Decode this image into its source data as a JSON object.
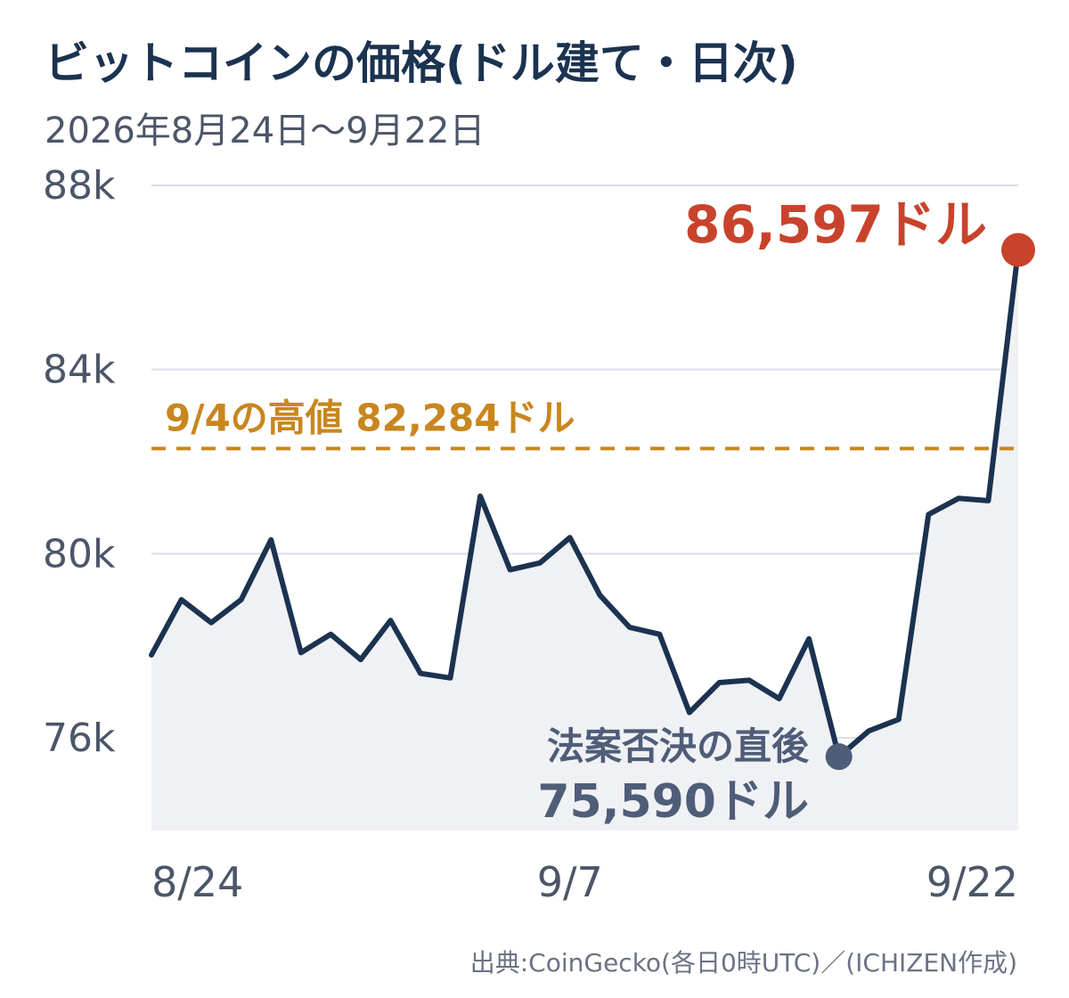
{
  "colors": {
    "title": "#1b3350",
    "line": "#1b3350",
    "area": "#f0f1f4",
    "grid": "#dcdfe8",
    "high": "#c8861f",
    "last": "#c9432c",
    "low": "#4f5d78",
    "axis_text": "#4c5668"
  },
  "chart_data": {
    "type": "line",
    "title": "ビットコインの価格(ドル建て・日次)",
    "subtitle": "2026年8月24日〜9月22日",
    "x": [
      "8/24",
      "8/25",
      "8/26",
      "8/27",
      "8/28",
      "8/29",
      "8/30",
      "8/31",
      "9/1",
      "9/2",
      "9/3",
      "9/4",
      "9/5",
      "9/6",
      "9/7",
      "9/8",
      "9/9",
      "9/10",
      "9/11",
      "9/12",
      "9/13",
      "9/14",
      "9/15",
      "9/16",
      "9/17",
      "9/18",
      "9/19",
      "9/20",
      "9/21",
      "9/22"
    ],
    "series": [
      {
        "values": [
          77800,
          79000,
          78500,
          79000,
          80300,
          77850,
          78250,
          77700,
          78550,
          77400,
          77300,
          81250,
          79650,
          79800,
          80350,
          79100,
          78400,
          78250,
          76550,
          77200,
          77250,
          76850,
          78150,
          75590,
          76150,
          76400,
          80850,
          81200,
          81150,
          86597
        ]
      }
    ],
    "x_ticks": [
      "8/24",
      "9/7",
      "9/22"
    ],
    "y_ticks": [
      "88k",
      "84k",
      "80k",
      "76k"
    ],
    "y_tick_values": [
      88000,
      84000,
      80000,
      76000
    ],
    "ylim": [
      74000,
      88000
    ],
    "grid": true,
    "reference_line": {
      "value": 82284,
      "label": "9/4の高値 82,284ドル"
    },
    "annotations": {
      "last": {
        "label": "86,597ドル"
      },
      "low": {
        "label_line1": "法案否決の直後",
        "label_line2": "75,590ドル"
      }
    },
    "source": "出典:CoinGecko(各日0時UTC)／(ICHIZEN作成)"
  }
}
